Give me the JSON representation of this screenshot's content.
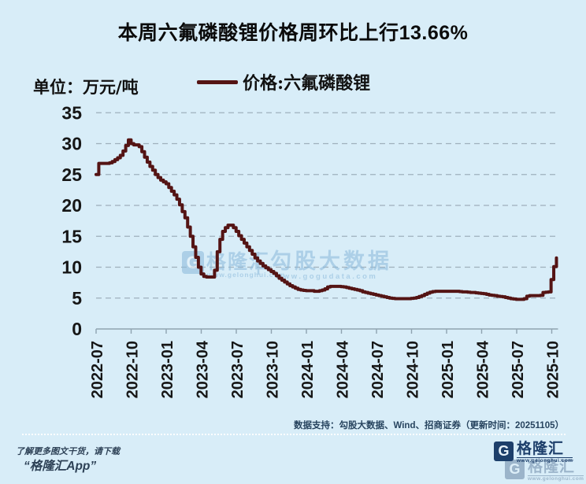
{
  "page": {
    "background_color": "#d8edf8"
  },
  "title": "本周六氟磷酸锂价格周环比上行13.66%",
  "unit_label": "单位：万元/吨",
  "legend": {
    "label": "价格:六氟磷酸锂",
    "line_color": "#541414"
  },
  "chart_data": {
    "type": "line",
    "line_style": "step-after",
    "title": "本周六氟磷酸锂价格周环比上行13.66%",
    "xlabel": "",
    "ylabel": "万元/吨",
    "ylim": [
      0,
      35
    ],
    "yticks": [
      0,
      5,
      10,
      15,
      20,
      25,
      30,
      35
    ],
    "grid": "horizontal-dashed",
    "legend_position": "top",
    "x_tick_labels": [
      "2022-07",
      "2022-10",
      "2023-01",
      "2023-04",
      "2023-07",
      "2023-10",
      "2024-01",
      "2024-04",
      "2024-07",
      "2024-10",
      "2025-01",
      "2025-04",
      "2025-07",
      "2025-10"
    ],
    "x_start": "2022-07",
    "x_interval": "weekly",
    "series": [
      {
        "name": "价格:六氟磷酸锂",
        "color": "#541414",
        "values": [
          25.0,
          26.8,
          26.8,
          26.8,
          26.8,
          26.9,
          27.1,
          27.4,
          27.7,
          28.1,
          28.8,
          29.7,
          30.6,
          30.0,
          29.8,
          29.8,
          29.5,
          28.7,
          27.8,
          27.0,
          26.3,
          25.7,
          25.0,
          24.5,
          24.1,
          23.8,
          23.5,
          22.9,
          22.3,
          21.7,
          21.0,
          20.1,
          19.0,
          18.0,
          16.5,
          15.0,
          13.3,
          11.6,
          10.0,
          8.9,
          8.5,
          8.4,
          8.4,
          8.4,
          9.5,
          12.5,
          14.5,
          15.8,
          16.4,
          16.8,
          16.8,
          16.4,
          15.8,
          15.1,
          14.5,
          13.9,
          13.3,
          12.7,
          12.1,
          11.5,
          11.0,
          10.6,
          10.2,
          9.9,
          9.6,
          9.3,
          9.0,
          8.6,
          8.2,
          7.9,
          7.6,
          7.3,
          7.0,
          6.8,
          6.6,
          6.4,
          6.3,
          6.25,
          6.2,
          6.2,
          6.2,
          6.1,
          6.1,
          6.2,
          6.3,
          6.5,
          6.8,
          6.9,
          6.9,
          6.9,
          6.9,
          6.85,
          6.8,
          6.7,
          6.6,
          6.5,
          6.4,
          6.3,
          6.2,
          6.0,
          5.9,
          5.8,
          5.7,
          5.6,
          5.5,
          5.4,
          5.3,
          5.2,
          5.1,
          5.0,
          4.95,
          4.9,
          4.9,
          4.9,
          4.9,
          4.9,
          4.9,
          4.95,
          5.0,
          5.1,
          5.25,
          5.4,
          5.6,
          5.8,
          5.95,
          6.05,
          6.1,
          6.1,
          6.1,
          6.1,
          6.1,
          6.1,
          6.1,
          6.1,
          6.1,
          6.05,
          6.0,
          6.0,
          5.95,
          5.9,
          5.9,
          5.85,
          5.8,
          5.75,
          5.7,
          5.6,
          5.5,
          5.45,
          5.4,
          5.3,
          5.25,
          5.2,
          5.1,
          5.0,
          4.9,
          4.85,
          4.8,
          4.8,
          4.8,
          4.9,
          5.3,
          5.4,
          5.4,
          5.4,
          5.4,
          5.45,
          5.9,
          5.95,
          6.0,
          8.0,
          10.1,
          11.5
        ]
      }
    ]
  },
  "watermark": {
    "logo_g": "G",
    "brand": "格隆汇",
    "brand_url": "www.gelonghui.com",
    "partner": "勾股大数据",
    "partner_url": "www.gogudata.com",
    "color": "#8fbcdc"
  },
  "footer": {
    "data_support": "数据支持：勾股大数据、Wind、招商证券（更新时间：20251105）",
    "promo_line1": "了解更多图文干货，请下载",
    "promo_line2": "“格隆汇App”",
    "logo_g": "G",
    "logo_text": "格隆汇",
    "logo_url": "www.gelonghui.com"
  }
}
